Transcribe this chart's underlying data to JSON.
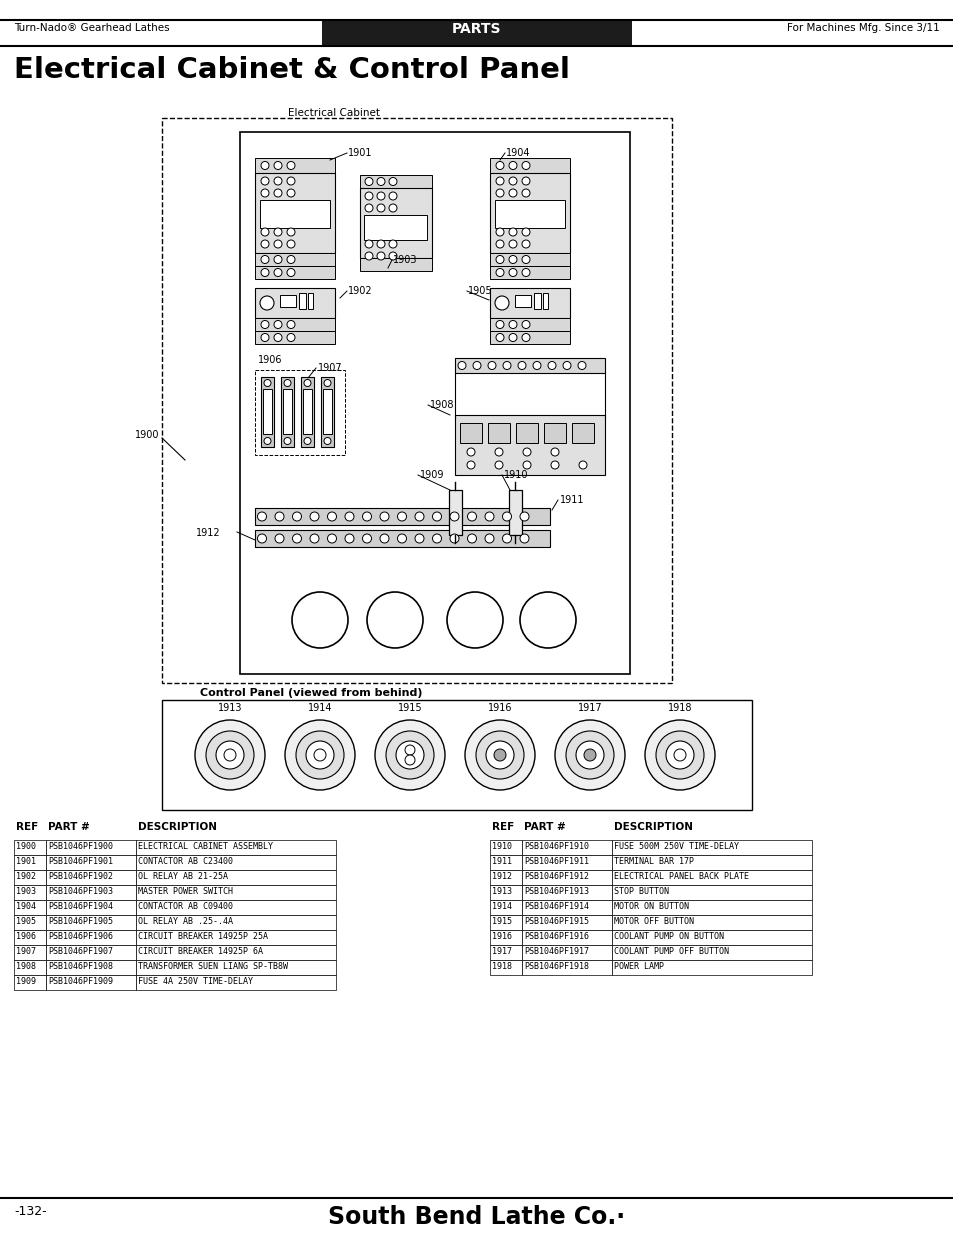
{
  "page_title": "Electrical Cabinet & Control Panel",
  "header_left": "Turn-Nado® Gearhead Lathes",
  "header_center": "PARTS",
  "header_right": "For Machines Mfg. Since 3/11",
  "footer_page": "-132-",
  "footer_brand": "South Bend Lathe Co.",
  "diagram_label_cabinet": "Electrical Cabinet",
  "diagram_label_panel": "Control Panel (viewed from behind)",
  "table_headers": [
    "REF",
    "PART #",
    "DESCRIPTION"
  ],
  "table_left": [
    [
      "1900",
      "PSB1046PF1900",
      "ELECTRICAL CABINET ASSEMBLY"
    ],
    [
      "1901",
      "PSB1046PF1901",
      "CONTACTOR AB C23400"
    ],
    [
      "1902",
      "PSB1046PF1902",
      "OL RELAY AB 21-25A"
    ],
    [
      "1903",
      "PSB1046PF1903",
      "MASTER POWER SWITCH"
    ],
    [
      "1904",
      "PSB1046PF1904",
      "CONTACTOR AB C09400"
    ],
    [
      "1905",
      "PSB1046PF1905",
      "OL RELAY AB .25-.4A"
    ],
    [
      "1906",
      "PSB1046PF1906",
      "CIRCUIT BREAKER 14925P 25A"
    ],
    [
      "1907",
      "PSB1046PF1907",
      "CIRCUIT BREAKER 14925P 6A"
    ],
    [
      "1908",
      "PSB1046PF1908",
      "TRANSFORMER SUEN LIANG SP-TB8W"
    ],
    [
      "1909",
      "PSB1046PF1909",
      "FUSE 4A 250V TIME-DELAY"
    ]
  ],
  "table_right": [
    [
      "1910",
      "PSB1046PF1910",
      "FUSE 500M 250V TIME-DELAY"
    ],
    [
      "1911",
      "PSB1046PF1911",
      "TERMINAL BAR 17P"
    ],
    [
      "1912",
      "PSB1046PF1912",
      "ELECTRICAL PANEL BACK PLATE"
    ],
    [
      "1913",
      "PSB1046PF1913",
      "STOP BUTTON"
    ],
    [
      "1914",
      "PSB1046PF1914",
      "MOTOR ON BUTTON"
    ],
    [
      "1915",
      "PSB1046PF1915",
      "MOTOR OFF BUTTON"
    ],
    [
      "1916",
      "PSB1046PF1916",
      "COOLANT PUMP ON BUTTON"
    ],
    [
      "1917",
      "PSB1046PF1917",
      "COOLANT PUMP OFF BUTTON"
    ],
    [
      "1918",
      "PSB1046PF1918",
      "POWER LAMP"
    ]
  ],
  "bg_color": "#ffffff"
}
